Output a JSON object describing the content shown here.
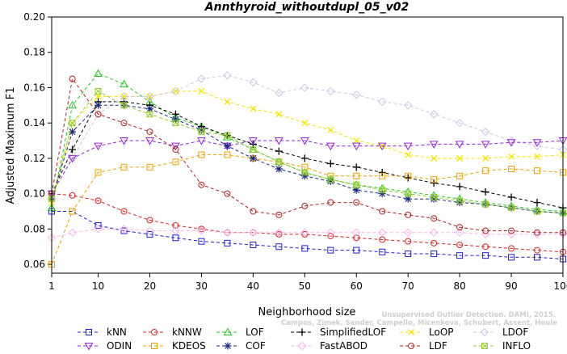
{
  "chart_data": {
    "type": "line",
    "title": "Annthyroid_withoutdupl_05_v02",
    "xlabel": "Neighborhood size",
    "ylabel": "Adjusted Maximum F1",
    "xlim": [
      1,
      100
    ],
    "ylim": [
      0.055,
      0.2
    ],
    "x_ticks": [
      1,
      10,
      20,
      30,
      40,
      50,
      60,
      70,
      80,
      90,
      100
    ],
    "y_ticks": [
      0.06,
      0.08,
      0.1,
      0.12,
      0.14,
      0.16,
      0.18,
      0.2
    ],
    "x_tick_labels": [
      "1",
      "10",
      "20",
      "30",
      "40",
      "50",
      "60",
      "70",
      "80",
      "90",
      "100"
    ],
    "y_tick_labels": [
      "0.06",
      "0.08",
      "0.10",
      "0.12",
      "0.14",
      "0.16",
      "0.18",
      "0.20"
    ],
    "grid": false,
    "legend_position": "bottom",
    "x": [
      1,
      5,
      10,
      15,
      20,
      25,
      30,
      35,
      40,
      45,
      50,
      55,
      60,
      65,
      70,
      75,
      80,
      85,
      90,
      95,
      100
    ],
    "series": [
      {
        "name": "kNN",
        "color": "#1f1fd8",
        "marker": "square",
        "values": [
          0.09,
          0.09,
          0.082,
          0.079,
          0.077,
          0.075,
          0.073,
          0.072,
          0.071,
          0.07,
          0.069,
          0.068,
          0.068,
          0.067,
          0.066,
          0.066,
          0.065,
          0.065,
          0.064,
          0.064,
          0.063
        ]
      },
      {
        "name": "kNNW",
        "color": "#dd2222",
        "marker": "circle",
        "values": [
          0.1,
          0.099,
          0.096,
          0.09,
          0.085,
          0.082,
          0.08,
          0.078,
          0.078,
          0.077,
          0.077,
          0.076,
          0.075,
          0.074,
          0.073,
          0.072,
          0.071,
          0.07,
          0.069,
          0.068,
          0.067
        ]
      },
      {
        "name": "LOF",
        "color": "#22cc22",
        "marker": "triangle-up",
        "values": [
          0.092,
          0.15,
          0.168,
          0.162,
          0.152,
          0.143,
          0.138,
          0.132,
          0.125,
          0.118,
          0.112,
          0.108,
          0.105,
          0.103,
          0.101,
          0.099,
          0.097,
          0.095,
          0.093,
          0.091,
          0.09
        ]
      },
      {
        "name": "SimplifiedLOF",
        "color": "#000000",
        "marker": "plus",
        "values": [
          0.1,
          0.125,
          0.152,
          0.152,
          0.15,
          0.145,
          0.138,
          0.133,
          0.128,
          0.124,
          0.12,
          0.117,
          0.115,
          0.112,
          0.109,
          0.106,
          0.104,
          0.101,
          0.098,
          0.095,
          0.092
        ]
      },
      {
        "name": "LoOP",
        "color": "#f5e400",
        "marker": "x",
        "values": [
          0.095,
          0.14,
          0.155,
          0.155,
          0.155,
          0.158,
          0.158,
          0.152,
          0.148,
          0.145,
          0.14,
          0.136,
          0.13,
          0.127,
          0.122,
          0.12,
          0.12,
          0.12,
          0.121,
          0.121,
          0.122
        ]
      },
      {
        "name": "LDOF",
        "color": "#c8c8ee",
        "marker": "diamond",
        "values": [
          0.1,
          0.12,
          0.145,
          0.155,
          0.155,
          0.158,
          0.165,
          0.167,
          0.163,
          0.157,
          0.16,
          0.158,
          0.156,
          0.152,
          0.15,
          0.145,
          0.14,
          0.135,
          0.13,
          0.127,
          0.125
        ]
      },
      {
        "name": "ODIN",
        "color": "#9922dd",
        "marker": "triangle-down",
        "values": [
          0.1,
          0.12,
          0.127,
          0.13,
          0.13,
          0.127,
          0.13,
          0.127,
          0.13,
          0.13,
          0.13,
          0.127,
          0.127,
          0.127,
          0.127,
          0.128,
          0.128,
          0.128,
          0.129,
          0.129,
          0.13
        ]
      },
      {
        "name": "KDEOS",
        "color": "#f0a000",
        "marker": "square",
        "values": [
          0.06,
          0.09,
          0.112,
          0.115,
          0.115,
          0.118,
          0.122,
          0.122,
          0.12,
          0.118,
          0.115,
          0.11,
          0.11,
          0.11,
          0.11,
          0.108,
          0.11,
          0.113,
          0.114,
          0.113,
          0.112
        ]
      },
      {
        "name": "COF",
        "color": "#1a2a88",
        "marker": "asterisk",
        "values": [
          0.097,
          0.135,
          0.15,
          0.15,
          0.148,
          0.142,
          0.136,
          0.127,
          0.12,
          0.114,
          0.11,
          0.107,
          0.102,
          0.1,
          0.097,
          0.097,
          0.095,
          0.094,
          0.092,
          0.09,
          0.089
        ]
      },
      {
        "name": "FastABOD",
        "color": "#ffb3ee",
        "marker": "diamond",
        "values": [
          0.075,
          0.078,
          0.08,
          0.08,
          0.079,
          0.079,
          0.079,
          0.078,
          0.078,
          0.078,
          0.078,
          0.078,
          0.078,
          0.078,
          0.078,
          0.078,
          0.078,
          0.077,
          0.077,
          0.077,
          0.077
        ]
      },
      {
        "name": "LDF",
        "color": "#b02020",
        "marker": "circle",
        "values": [
          0.1,
          0.165,
          0.145,
          0.14,
          0.135,
          0.125,
          0.105,
          0.1,
          0.09,
          0.088,
          0.093,
          0.095,
          0.095,
          0.09,
          0.088,
          0.086,
          0.081,
          0.079,
          0.079,
          0.078,
          0.078
        ]
      },
      {
        "name": "INFLO",
        "color": "#99cc33",
        "marker": "square-x",
        "values": [
          0.097,
          0.14,
          0.158,
          0.15,
          0.145,
          0.14,
          0.135,
          0.133,
          0.125,
          0.118,
          0.112,
          0.108,
          0.105,
          0.102,
          0.1,
          0.098,
          0.096,
          0.094,
          0.092,
          0.09,
          0.089
        ]
      }
    ],
    "legend": [
      {
        "series": "kNN"
      },
      {
        "series": "kNNW"
      },
      {
        "series": "LOF"
      },
      {
        "series": "SimplifiedLOF"
      },
      {
        "series": "LoOP"
      },
      {
        "series": "LDOF"
      },
      {
        "series": "ODIN"
      },
      {
        "series": "KDEOS"
      },
      {
        "series": "COF"
      },
      {
        "series": "FastABOD"
      },
      {
        "series": "LDF"
      },
      {
        "series": "INFLO"
      }
    ],
    "watermark": [
      "Unsupervised Outlier Detection. DAMI, 2015.",
      "Campos, Zimek, Sander, Campello, Micenkova, Schubert, Assent, Houle"
    ]
  }
}
